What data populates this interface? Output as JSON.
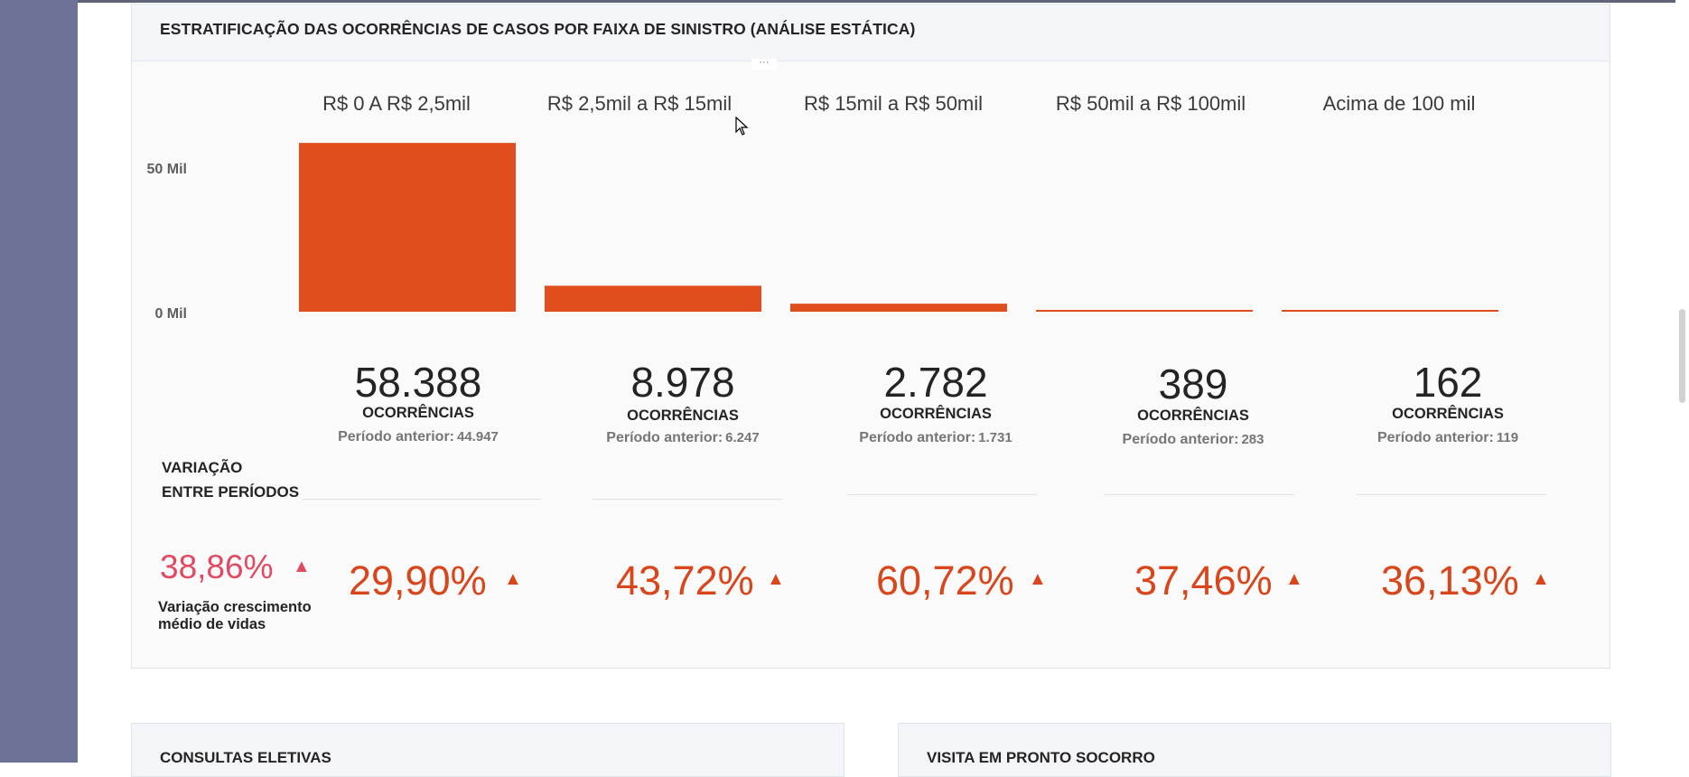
{
  "panel": {
    "title": "ESTRATIFICAÇÃO DAS OCORRÊNCIAS DE CASOS POR FAIXA DE SINISTRO (ANÁLISE ESTÁTICA)",
    "more_label": "···"
  },
  "chart_data": {
    "type": "bar",
    "categories": [
      "R$ 0 A R$ 2,5mil",
      "R$ 2,5mil a R$ 15mil",
      "R$ 15mil a R$ 50mil",
      "R$ 50mil a R$ 100mil",
      "Acima de 100 mil"
    ],
    "values": [
      58388,
      8978,
      2782,
      389,
      162
    ],
    "y_ticks": [
      "50 Mil",
      "0 Mil"
    ],
    "y_tick_values": [
      50000,
      0
    ],
    "color": "#e04e1e",
    "grid": false,
    "legend": "none"
  },
  "cards": [
    {
      "value": "58.388",
      "unit": "OCORRÊNCIAS",
      "prev_label": "Período anterior:",
      "prev_value": "44.947"
    },
    {
      "value": "8.978",
      "unit": "OCORRÊNCIAS",
      "prev_label": "Período anterior:",
      "prev_value": "6.247"
    },
    {
      "value": "2.782",
      "unit": "OCORRÊNCIAS",
      "prev_label": "Período anterior:",
      "prev_value": "1.731"
    },
    {
      "value": "389",
      "unit": "OCORRÊNCIAS",
      "prev_label": "Período anterior:",
      "prev_value": "283"
    },
    {
      "value": "162",
      "unit": "OCORRÊNCIAS",
      "prev_label": "Período anterior:",
      "prev_value": "119"
    }
  ],
  "variation": {
    "label_line1": "VARIAÇÃO",
    "label_line2": "ENTRE PERÍODOS",
    "values": [
      "29,90%",
      "43,72%",
      "60,72%",
      "37,46%",
      "36,13%"
    ],
    "arrow": "▲",
    "color": "#d9461c"
  },
  "growth": {
    "value": "38,86%",
    "arrow": "▲",
    "label_line1": "Variação crescimento",
    "label_line2": "médio de vidas",
    "color": "#e04b63"
  },
  "bottom_cards": [
    {
      "title": "CONSULTAS ELETIVAS"
    },
    {
      "title": "VISITA EM PRONTO SOCORRO"
    }
  ]
}
